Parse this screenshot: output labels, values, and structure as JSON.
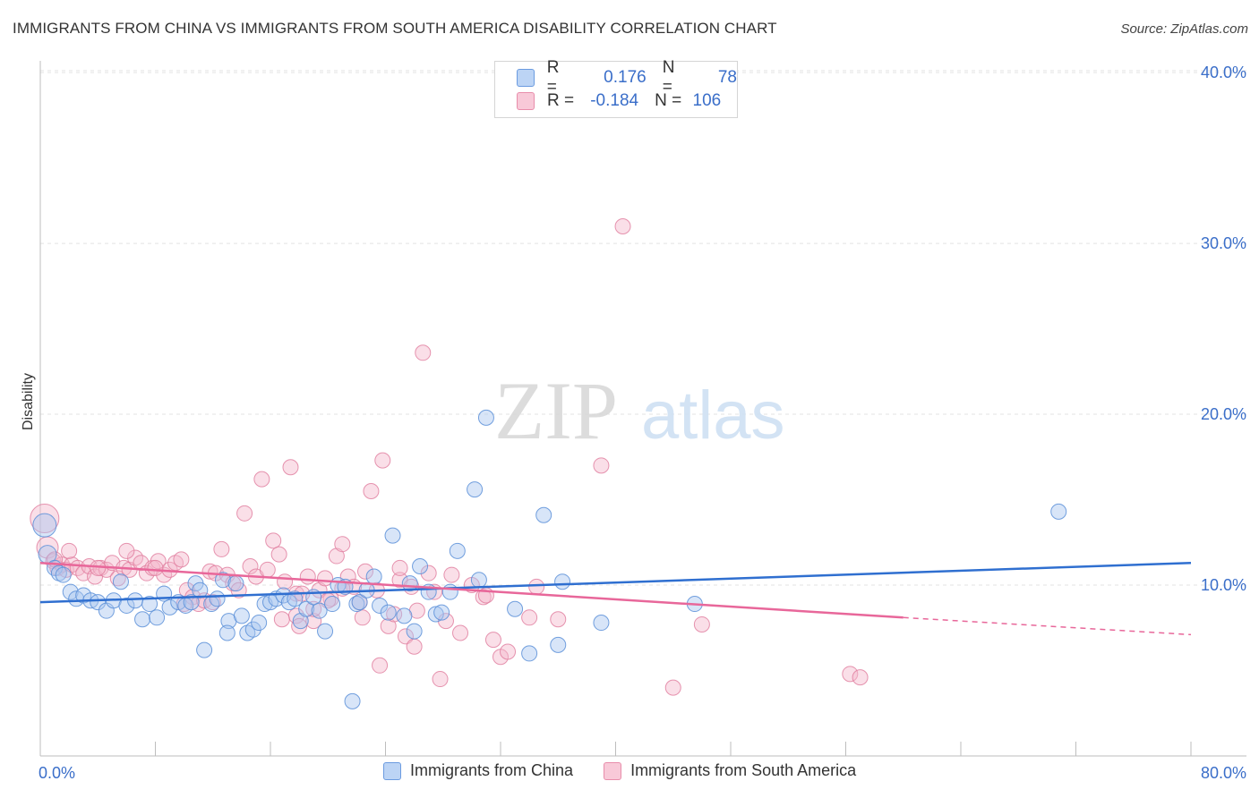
{
  "header": {
    "title": "IMMIGRANTS FROM CHINA VS IMMIGRANTS FROM SOUTH AMERICA DISABILITY CORRELATION CHART",
    "source": "Source: ZipAtlas.com"
  },
  "watermark": {
    "zip": "ZIP",
    "atlas": "atlas"
  },
  "legend": {
    "china": {
      "r_label": "R =",
      "r_value": "0.176",
      "n_label": "N =",
      "n_value": "78",
      "color": "#a8c6f0"
    },
    "south_america": {
      "r_label": "R =",
      "r_value": "-0.184",
      "n_label": "N =",
      "n_value": "106",
      "color": "#f5b8cb"
    }
  },
  "bottom_legend": {
    "china": "Immigrants from China",
    "south_america": "Immigrants from South America"
  },
  "colors": {
    "china_fill": "#a8c6f0",
    "china_stroke": "#5b8fd8",
    "china_line": "#2f6fd0",
    "sa_fill": "#f5b8cb",
    "sa_stroke": "#e07b9c",
    "sa_line": "#e8679a",
    "axis_tick_text": "#3a6ec9"
  },
  "chart_data": {
    "type": "scatter",
    "title": "IMMIGRANTS FROM CHINA VS IMMIGRANTS FROM SOUTH AMERICA DISABILITY CORRELATION CHART",
    "xlabel": "",
    "ylabel": "Disability",
    "xlim": [
      0,
      80
    ],
    "ylim": [
      0,
      41
    ],
    "x_tick_labels": [
      "0.0%",
      "80.0%"
    ],
    "y_ticks": [
      10,
      20,
      30,
      40
    ],
    "y_tick_labels": [
      "10.0%",
      "20.0%",
      "30.0%",
      "40.0%"
    ],
    "grid": "horizontal dashed",
    "legend_position": "top-center",
    "series": [
      {
        "name": "Immigrants from China",
        "color": "#5b8fd8",
        "trend": {
          "x": [
            0,
            80
          ],
          "y": [
            9.0,
            11.3
          ]
        },
        "points": [
          [
            0.3,
            13.5
          ],
          [
            0.5,
            11.8
          ],
          [
            1.0,
            11.0
          ],
          [
            1.3,
            10.7
          ],
          [
            1.6,
            10.6
          ],
          [
            2.1,
            9.6
          ],
          [
            2.5,
            9.2
          ],
          [
            3.0,
            9.4
          ],
          [
            3.5,
            9.1
          ],
          [
            4.0,
            9.0
          ],
          [
            4.6,
            8.5
          ],
          [
            5.1,
            9.1
          ],
          [
            5.6,
            10.2
          ],
          [
            6.0,
            8.8
          ],
          [
            6.6,
            9.1
          ],
          [
            7.1,
            8.0
          ],
          [
            7.6,
            8.9
          ],
          [
            8.1,
            8.1
          ],
          [
            8.6,
            9.5
          ],
          [
            9.0,
            8.7
          ],
          [
            9.6,
            9.0
          ],
          [
            10.1,
            8.8
          ],
          [
            10.5,
            9.0
          ],
          [
            10.8,
            10.1
          ],
          [
            11.1,
            9.7
          ],
          [
            11.4,
            6.2
          ],
          [
            11.9,
            8.9
          ],
          [
            12.3,
            9.2
          ],
          [
            12.7,
            10.3
          ],
          [
            13.1,
            7.9
          ],
          [
            13.6,
            10.1
          ],
          [
            14.0,
            8.2
          ],
          [
            14.4,
            7.2
          ],
          [
            14.8,
            7.4
          ],
          [
            15.2,
            7.8
          ],
          [
            15.6,
            8.9
          ],
          [
            16.0,
            9.0
          ],
          [
            16.4,
            9.2
          ],
          [
            16.9,
            9.4
          ],
          [
            17.3,
            9.0
          ],
          [
            17.7,
            9.2
          ],
          [
            18.1,
            7.9
          ],
          [
            18.5,
            8.6
          ],
          [
            19.0,
            9.3
          ],
          [
            19.4,
            8.5
          ],
          [
            19.8,
            7.3
          ],
          [
            20.3,
            8.9
          ],
          [
            20.7,
            10.0
          ],
          [
            21.2,
            9.9
          ],
          [
            22.0,
            8.9
          ],
          [
            22.2,
            9.0
          ],
          [
            22.7,
            9.7
          ],
          [
            23.2,
            10.5
          ],
          [
            23.6,
            8.8
          ],
          [
            24.2,
            8.4
          ],
          [
            24.5,
            12.9
          ],
          [
            25.3,
            8.2
          ],
          [
            25.7,
            10.1
          ],
          [
            26.0,
            7.3
          ],
          [
            26.4,
            11.1
          ],
          [
            27.0,
            9.6
          ],
          [
            27.5,
            8.3
          ],
          [
            27.9,
            8.4
          ],
          [
            28.5,
            9.6
          ],
          [
            29.0,
            12.0
          ],
          [
            30.5,
            10.3
          ],
          [
            30.2,
            15.6
          ],
          [
            31.0,
            19.8
          ],
          [
            33.0,
            8.6
          ],
          [
            34.0,
            6.0
          ],
          [
            35.0,
            14.1
          ],
          [
            36.0,
            6.5
          ],
          [
            36.3,
            10.2
          ],
          [
            39.0,
            7.8
          ],
          [
            45.5,
            8.9
          ],
          [
            70.8,
            14.3
          ],
          [
            21.7,
            3.2
          ],
          [
            13.0,
            7.2
          ]
        ]
      },
      {
        "name": "Immigrants from South America",
        "color": "#e07b9c",
        "trend": {
          "x": [
            0,
            60
          ],
          "y": [
            11.3,
            8.1
          ]
        },
        "trend_dashed": {
          "x": [
            60,
            80
          ],
          "y": [
            8.1,
            7.1
          ]
        },
        "points": [
          [
            0.3,
            13.9
          ],
          [
            0.5,
            12.2
          ],
          [
            0.9,
            11.4
          ],
          [
            1.2,
            11.0
          ],
          [
            1.5,
            11.2
          ],
          [
            1.8,
            10.9
          ],
          [
            2.2,
            11.2
          ],
          [
            2.6,
            11.0
          ],
          [
            3.0,
            10.7
          ],
          [
            3.4,
            11.1
          ],
          [
            3.8,
            10.5
          ],
          [
            4.2,
            11.0
          ],
          [
            4.6,
            10.9
          ],
          [
            5.0,
            11.3
          ],
          [
            5.4,
            10.4
          ],
          [
            5.8,
            11.0
          ],
          [
            6.2,
            10.9
          ],
          [
            6.6,
            11.6
          ],
          [
            7.0,
            11.3
          ],
          [
            7.4,
            10.7
          ],
          [
            7.8,
            11.0
          ],
          [
            8.2,
            11.4
          ],
          [
            8.6,
            10.6
          ],
          [
            9.0,
            10.9
          ],
          [
            9.4,
            11.3
          ],
          [
            9.8,
            11.5
          ],
          [
            10.2,
            9.7
          ],
          [
            10.6,
            9.3
          ],
          [
            11.0,
            8.9
          ],
          [
            11.4,
            9.1
          ],
          [
            11.8,
            10.8
          ],
          [
            12.2,
            10.7
          ],
          [
            12.6,
            12.1
          ],
          [
            13.0,
            10.6
          ],
          [
            13.4,
            10.1
          ],
          [
            13.8,
            9.7
          ],
          [
            14.2,
            14.2
          ],
          [
            14.6,
            11.1
          ],
          [
            15.0,
            10.5
          ],
          [
            15.4,
            16.2
          ],
          [
            15.8,
            10.9
          ],
          [
            16.2,
            12.6
          ],
          [
            16.6,
            11.8
          ],
          [
            17.0,
            10.2
          ],
          [
            17.4,
            16.9
          ],
          [
            17.8,
            9.5
          ],
          [
            18.2,
            9.5
          ],
          [
            18.6,
            10.5
          ],
          [
            19.0,
            7.9
          ],
          [
            19.4,
            9.7
          ],
          [
            19.8,
            10.4
          ],
          [
            20.2,
            9.2
          ],
          [
            20.6,
            11.7
          ],
          [
            21.0,
            12.4
          ],
          [
            21.4,
            10.5
          ],
          [
            21.8,
            9.9
          ],
          [
            22.2,
            9.0
          ],
          [
            22.6,
            10.8
          ],
          [
            23.0,
            15.5
          ],
          [
            23.4,
            9.7
          ],
          [
            23.8,
            17.3
          ],
          [
            24.2,
            7.6
          ],
          [
            24.6,
            8.3
          ],
          [
            25.0,
            10.3
          ],
          [
            25.4,
            7.0
          ],
          [
            25.8,
            9.9
          ],
          [
            26.2,
            8.5
          ],
          [
            26.6,
            23.6
          ],
          [
            27.0,
            10.7
          ],
          [
            27.4,
            9.6
          ],
          [
            27.8,
            4.5
          ],
          [
            28.2,
            7.9
          ],
          [
            28.6,
            10.6
          ],
          [
            29.2,
            7.2
          ],
          [
            30.0,
            10.0
          ],
          [
            30.8,
            9.3
          ],
          [
            31.0,
            9.4
          ],
          [
            31.5,
            6.8
          ],
          [
            32.0,
            5.8
          ],
          [
            32.5,
            6.1
          ],
          [
            34.0,
            8.1
          ],
          [
            34.5,
            9.9
          ],
          [
            36.0,
            8.0
          ],
          [
            39.0,
            17.0
          ],
          [
            40.5,
            31.0
          ],
          [
            44.0,
            4.0
          ],
          [
            46.0,
            7.7
          ],
          [
            56.3,
            4.8
          ],
          [
            57.0,
            4.6
          ],
          [
            23.6,
            5.3
          ],
          [
            21.0,
            9.8
          ],
          [
            19.0,
            8.6
          ],
          [
            17.8,
            8.2
          ],
          [
            16.8,
            8.0
          ],
          [
            25.0,
            11.0
          ],
          [
            26.0,
            6.4
          ],
          [
            22.4,
            8.1
          ],
          [
            20.0,
            9.1
          ],
          [
            18.0,
            7.6
          ],
          [
            12.0,
            9.0
          ],
          [
            10.0,
            8.9
          ],
          [
            8.0,
            11.0
          ],
          [
            6.0,
            12.0
          ],
          [
            4.0,
            11.0
          ],
          [
            2.0,
            12.0
          ],
          [
            1.0,
            11.5
          ]
        ]
      }
    ]
  }
}
